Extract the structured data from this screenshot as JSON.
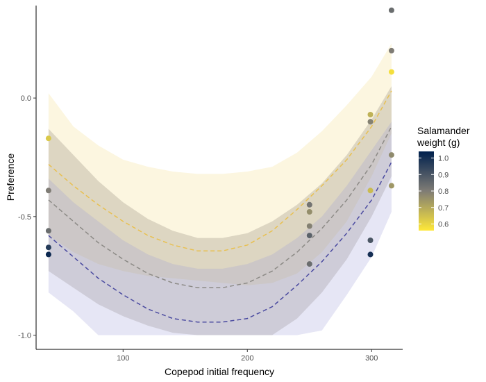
{
  "chart_data": {
    "type": "scatter",
    "title": "",
    "xlabel": "Copepod initial frequency",
    "ylabel": "Preference",
    "xlim": [
      30,
      325
    ],
    "ylim": [
      -1.06,
      0.39
    ],
    "x_ticks": [
      100,
      200,
      300
    ],
    "y_ticks": [
      -1.0,
      -0.5,
      0.0
    ],
    "y_tick_labels": [
      "-1.0",
      "-0.5",
      "0.0"
    ],
    "grid": false,
    "legend": {
      "title_lines": [
        "Salamander",
        "weight (g)"
      ],
      "placement": "right",
      "min": 0.56,
      "max": 1.04,
      "ticks": [
        0.6,
        0.7,
        0.8,
        0.9,
        1.0
      ],
      "tick_labels": [
        "0.6",
        "0.7",
        "0.8",
        "0.9",
        "1.0"
      ],
      "low_color": "#ffe838",
      "mid_color": "#7f7c75",
      "high_color": "#00204d"
    },
    "points": [
      {
        "x": 40,
        "y": -0.17,
        "weight": 0.63
      },
      {
        "x": 40,
        "y": -0.39,
        "weight": 0.8
      },
      {
        "x": 40,
        "y": -0.56,
        "weight": 0.84
      },
      {
        "x": 40,
        "y": -0.63,
        "weight": 0.97
      },
      {
        "x": 40,
        "y": -0.66,
        "weight": 1.02
      },
      {
        "x": 250,
        "y": -0.45,
        "weight": 0.82
      },
      {
        "x": 250,
        "y": -0.48,
        "weight": 0.76
      },
      {
        "x": 250,
        "y": -0.54,
        "weight": 0.79
      },
      {
        "x": 250,
        "y": -0.58,
        "weight": 0.87
      },
      {
        "x": 250,
        "y": -0.7,
        "weight": 0.84
      },
      {
        "x": 299,
        "y": -0.07,
        "weight": 0.68
      },
      {
        "x": 299,
        "y": -0.1,
        "weight": 0.79
      },
      {
        "x": 299,
        "y": -0.39,
        "weight": 0.66
      },
      {
        "x": 299,
        "y": -0.6,
        "weight": 0.9
      },
      {
        "x": 299,
        "y": -0.66,
        "weight": 1.0
      },
      {
        "x": 316,
        "y": 0.37,
        "weight": 0.84
      },
      {
        "x": 316,
        "y": 0.2,
        "weight": 0.8
      },
      {
        "x": 316,
        "y": 0.11,
        "weight": 0.58
      },
      {
        "x": 316,
        "y": -0.24,
        "weight": 0.77
      },
      {
        "x": 316,
        "y": -0.37,
        "weight": 0.74
      }
    ],
    "fits": [
      {
        "line_color": "#e8c050",
        "ribbon_color": "#f5e6a6",
        "ribbon_opacity": 0.35,
        "x": [
          40,
          60,
          80,
          100,
          120,
          140,
          160,
          180,
          200,
          220,
          240,
          260,
          280,
          300,
          316
        ],
        "y": [
          -0.28,
          -0.37,
          -0.45,
          -0.52,
          -0.58,
          -0.62,
          -0.645,
          -0.645,
          -0.62,
          -0.56,
          -0.47,
          -0.37,
          -0.26,
          -0.12,
          0.03
        ],
        "lower": [
          -0.58,
          -0.65,
          -0.7,
          -0.73,
          -0.75,
          -0.76,
          -0.77,
          -0.78,
          -0.79,
          -0.78,
          -0.74,
          -0.65,
          -0.52,
          -0.33,
          -0.15
        ],
        "upper": [
          0.02,
          -0.12,
          -0.2,
          -0.26,
          -0.29,
          -0.31,
          -0.32,
          -0.32,
          -0.31,
          -0.29,
          -0.23,
          -0.14,
          -0.03,
          0.09,
          0.23
        ]
      },
      {
        "line_color": "#8c8a86",
        "ribbon_color": "#8c8476",
        "ribbon_opacity": 0.28,
        "x": [
          40,
          60,
          80,
          100,
          120,
          140,
          160,
          180,
          200,
          220,
          240,
          260,
          280,
          300,
          316
        ],
        "y": [
          -0.43,
          -0.52,
          -0.61,
          -0.68,
          -0.74,
          -0.78,
          -0.8,
          -0.8,
          -0.78,
          -0.73,
          -0.65,
          -0.55,
          -0.43,
          -0.28,
          -0.12
        ],
        "lower": [
          -0.73,
          -0.8,
          -0.87,
          -0.92,
          -0.96,
          -0.99,
          -1.0,
          -1.0,
          -1.0,
          -1.0,
          -0.93,
          -0.82,
          -0.68,
          -0.5,
          -0.33
        ],
        "upper": [
          -0.13,
          -0.24,
          -0.35,
          -0.44,
          -0.51,
          -0.56,
          -0.59,
          -0.59,
          -0.57,
          -0.52,
          -0.45,
          -0.36,
          -0.24,
          -0.09,
          0.05
        ]
      },
      {
        "line_color": "#4a4aa0",
        "ribbon_color": "#9a9ad8",
        "ribbon_opacity": 0.25,
        "x": [
          40,
          60,
          80,
          100,
          120,
          140,
          160,
          180,
          200,
          220,
          240,
          260,
          280,
          300,
          316
        ],
        "y": [
          -0.58,
          -0.67,
          -0.76,
          -0.83,
          -0.89,
          -0.93,
          -0.945,
          -0.945,
          -0.93,
          -0.88,
          -0.79,
          -0.69,
          -0.57,
          -0.43,
          -0.27
        ],
        "lower": [
          -0.82,
          -0.9,
          -1.0,
          -1.0,
          -1.0,
          -1.0,
          -1.0,
          -1.0,
          -1.0,
          -1.0,
          -1.0,
          -0.98,
          -0.83,
          -0.67,
          -0.48
        ],
        "upper": [
          -0.34,
          -0.44,
          -0.52,
          -0.6,
          -0.66,
          -0.7,
          -0.72,
          -0.72,
          -0.7,
          -0.66,
          -0.59,
          -0.5,
          -0.37,
          -0.22,
          -0.1
        ]
      }
    ]
  }
}
